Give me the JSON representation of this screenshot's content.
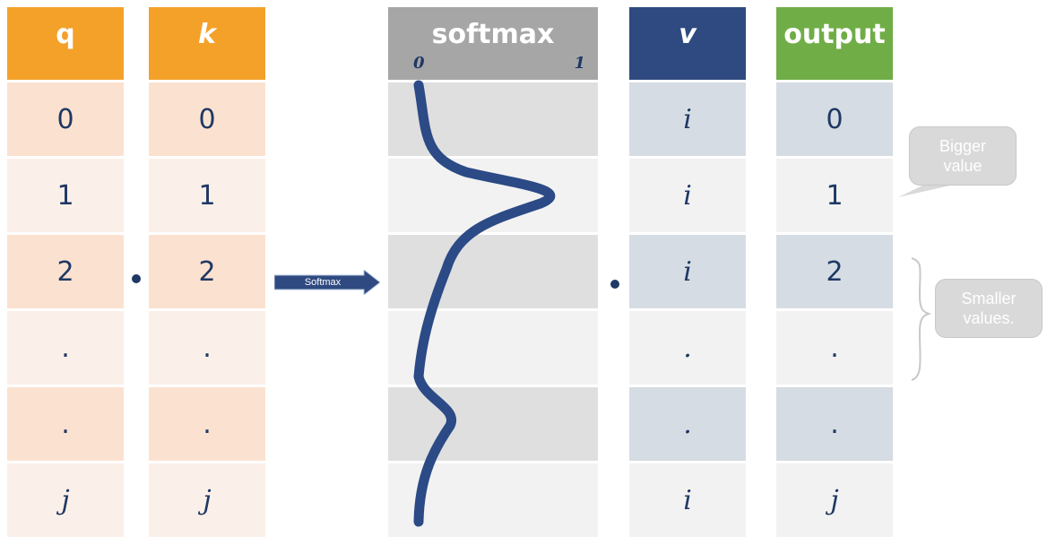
{
  "columns": {
    "q": {
      "header": "q",
      "cells": [
        "0",
        "1",
        "2",
        ".",
        ".",
        "j"
      ],
      "header_color": "#f4a12a",
      "cell_colors": [
        "#fbe2d0",
        "#fbf0e9",
        "#fbe2d0",
        "#fbf0e9",
        "#fbe2d0",
        "#fbf0e9"
      ]
    },
    "k": {
      "header": "k",
      "cells": [
        "0",
        "1",
        "2",
        ".",
        ".",
        "j"
      ],
      "header_color": "#f4a12a",
      "cell_colors": [
        "#fbe2d0",
        "#fbf0e9",
        "#fbe2d0",
        "#fbf0e9",
        "#fbe2d0",
        "#fbf0e9"
      ]
    },
    "softmax": {
      "header": "softmax",
      "axis_min": "0",
      "axis_max": "1",
      "header_color": "#a6a6a6",
      "cell_colors": [
        "#dfdfdf",
        "#f2f2f2",
        "#dfdfdf",
        "#f2f2f2",
        "#dfdfdf",
        "#f2f2f2"
      ]
    },
    "v": {
      "header": "v",
      "cells": [
        "i",
        "i",
        "i",
        ".",
        ".",
        "i"
      ],
      "header_color": "#2f4a80",
      "cell_colors": [
        "#d6dce3",
        "#f2f2f2",
        "#d6dce3",
        "#f2f2f2",
        "#d6dce3",
        "#f2f2f2"
      ]
    },
    "output": {
      "header": "output",
      "cells": [
        "0",
        "1",
        "2",
        ".",
        ".",
        "j"
      ],
      "header_color": "#70ad47",
      "cell_colors": [
        "#d6dce3",
        "#f2f2f2",
        "#d6dce3",
        "#f2f2f2",
        "#d6dce3",
        "#f2f2f2"
      ]
    }
  },
  "arrow": {
    "label": "Softmax",
    "color": "#2f4a80"
  },
  "callouts": {
    "bigger": "Bigger value",
    "smaller": "Smaller values."
  },
  "colors": {
    "text": "#1f3864",
    "curve": "#2b4a86"
  }
}
